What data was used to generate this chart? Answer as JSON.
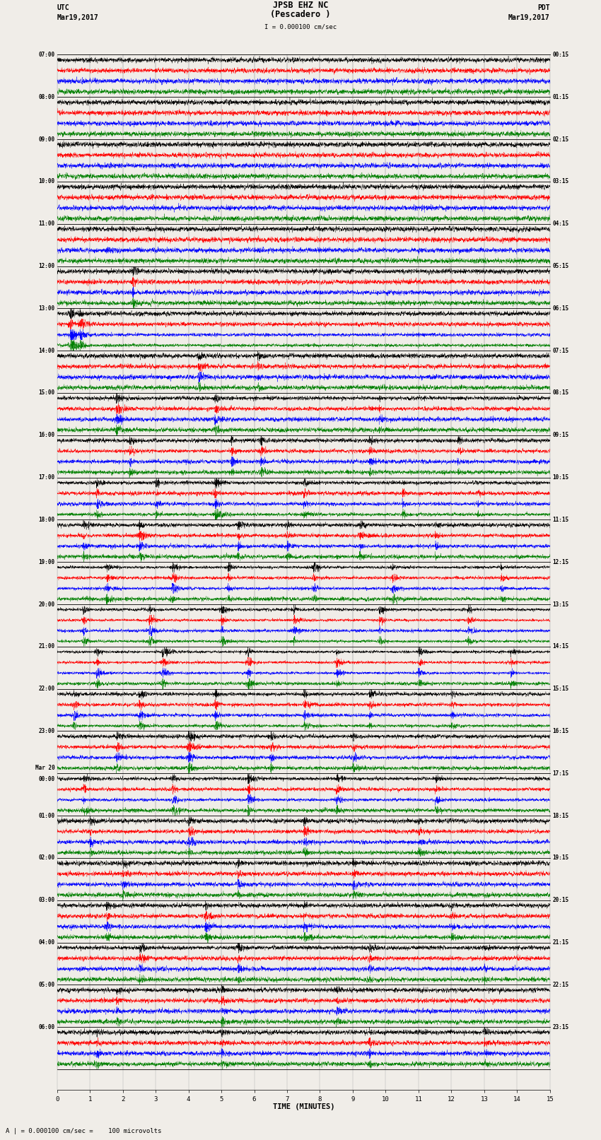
{
  "title_line1": "JPSB EHZ NC",
  "title_line2": "(Pescadero )",
  "title_scale": "I = 0.000100 cm/sec",
  "label_left_top1": "UTC",
  "label_left_top2": "Mar19,2017",
  "label_right_top1": "PDT",
  "label_right_top2": "Mar19,2017",
  "xlabel": "TIME (MINUTES)",
  "bottom_label": "A | = 0.000100 cm/sec =    100 microvolts",
  "utc_labels": [
    "07:00",
    "08:00",
    "09:00",
    "10:00",
    "11:00",
    "12:00",
    "13:00",
    "14:00",
    "15:00",
    "16:00",
    "17:00",
    "18:00",
    "19:00",
    "20:00",
    "21:00",
    "22:00",
    "23:00",
    "Mar 20\n00:00",
    "01:00",
    "02:00",
    "03:00",
    "04:00",
    "05:00",
    "06:00"
  ],
  "pdt_labels": [
    "00:15",
    "01:15",
    "02:15",
    "03:15",
    "04:15",
    "05:15",
    "06:15",
    "07:15",
    "08:15",
    "09:15",
    "10:15",
    "11:15",
    "12:15",
    "13:15",
    "14:15",
    "15:15",
    "16:15",
    "17:15",
    "18:15",
    "19:15",
    "20:15",
    "21:15",
    "22:15",
    "23:15"
  ],
  "n_rows": 24,
  "traces_per_row": 4,
  "colors": [
    "black",
    "red",
    "blue",
    "green"
  ],
  "bg_color": "#f0ede8",
  "grid_color": "#aaaaaa",
  "fig_width": 8.5,
  "fig_height": 16.13,
  "x_min": 0,
  "x_max": 15,
  "x_ticks": [
    0,
    1,
    2,
    3,
    4,
    5,
    6,
    7,
    8,
    9,
    10,
    11,
    12,
    13,
    14,
    15
  ],
  "row_amplitudes": [
    0.4,
    0.4,
    0.4,
    0.4,
    0.5,
    0.8,
    1.5,
    0.5,
    0.6,
    0.7,
    0.9,
    1.2,
    1.5,
    1.8,
    2.2,
    2.5,
    2.0,
    1.8,
    2.5,
    2.2,
    1.8,
    1.5,
    1.2,
    1.0
  ]
}
